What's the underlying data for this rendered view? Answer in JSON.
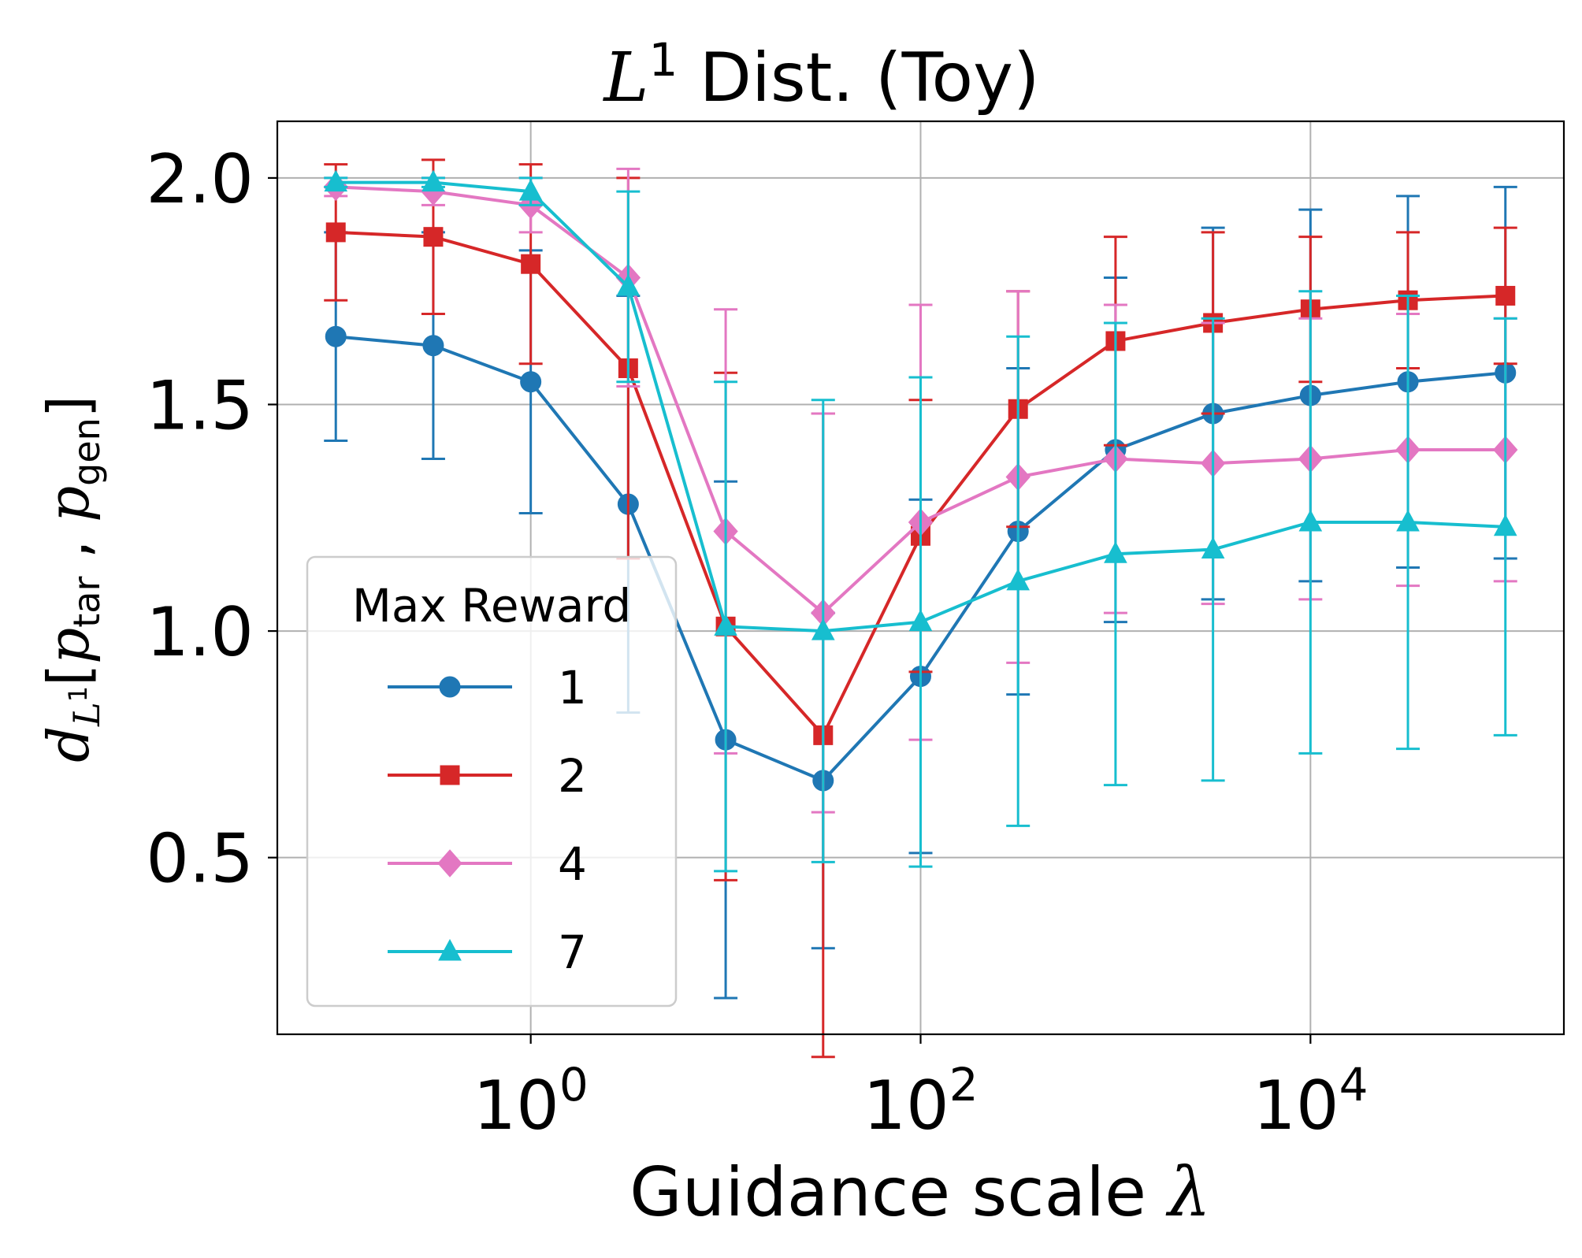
{
  "chart_data": {
    "type": "line",
    "title": {
      "main": "L",
      "sup": "1",
      "rest": " Dist. (Toy)"
    },
    "xlabel": {
      "text": "Guidance scale ",
      "symbol": "λ"
    },
    "ylabel": {
      "d": "d",
      "dsub_base": "L",
      "dsub_sup": "1",
      "open": "[",
      "p1": "p",
      "p1sub": "tar",
      "sep": " , ",
      "p2": "p",
      "p2sub": "gen",
      "close": "]"
    },
    "xscale": "log",
    "xlim_log10": [
      -1.3,
      5.3
    ],
    "ylim": [
      0.11,
      2.125
    ],
    "xticks": [
      {
        "base": "10",
        "exp": "0",
        "log10": 0
      },
      {
        "base": "10",
        "exp": "2",
        "log10": 2
      },
      {
        "base": "10",
        "exp": "4",
        "log10": 4
      }
    ],
    "yticks": [
      {
        "label": "0.5",
        "value": 0.5
      },
      {
        "label": "1.0",
        "value": 1.0
      },
      {
        "label": "1.5",
        "value": 1.5
      },
      {
        "label": "2.0",
        "value": 2.0
      }
    ],
    "grid": true,
    "x_log10": [
      -1,
      -0.5,
      0,
      0.5,
      1,
      1.5,
      2,
      2.5,
      3,
      3.5,
      4,
      4.5,
      5
    ],
    "series": [
      {
        "name": "1",
        "color": "#1f77b4",
        "marker": "circle",
        "values": [
          1.65,
          1.63,
          1.55,
          1.28,
          0.76,
          0.67,
          0.9,
          1.22,
          1.4,
          1.48,
          1.52,
          1.55,
          1.57
        ],
        "err": [
          0.23,
          0.25,
          0.29,
          0.46,
          0.57,
          0.37,
          0.39,
          0.36,
          0.38,
          0.41,
          0.41,
          0.41,
          0.41
        ]
      },
      {
        "name": "2",
        "color": "#d62728",
        "marker": "square",
        "values": [
          1.88,
          1.87,
          1.81,
          1.58,
          1.01,
          0.77,
          1.21,
          1.49,
          1.64,
          1.68,
          1.71,
          1.73,
          1.74
        ],
        "err": [
          0.15,
          0.17,
          0.22,
          0.42,
          0.56,
          0.71,
          0.3,
          0.26,
          0.23,
          0.2,
          0.16,
          0.15,
          0.15
        ]
      },
      {
        "name": "4",
        "color": "#e377c2",
        "marker": "diamond",
        "values": [
          1.98,
          1.97,
          1.94,
          1.78,
          1.22,
          1.04,
          1.24,
          1.34,
          1.38,
          1.37,
          1.38,
          1.4,
          1.4
        ],
        "err": [
          0.02,
          0.03,
          0.06,
          0.24,
          0.49,
          0.44,
          0.48,
          0.41,
          0.34,
          0.31,
          0.31,
          0.3,
          0.29
        ]
      },
      {
        "name": "7",
        "color": "#17becf",
        "marker": "triangle",
        "values": [
          1.99,
          1.99,
          1.97,
          1.76,
          1.01,
          1.0,
          1.02,
          1.11,
          1.17,
          1.18,
          1.24,
          1.24,
          1.23
        ],
        "err": [
          0.01,
          0.01,
          0.03,
          0.21,
          0.54,
          0.51,
          0.54,
          0.54,
          0.51,
          0.51,
          0.51,
          0.5,
          0.46
        ]
      }
    ],
    "legend": {
      "title": "Max Reward",
      "position": "lower-left"
    }
  }
}
